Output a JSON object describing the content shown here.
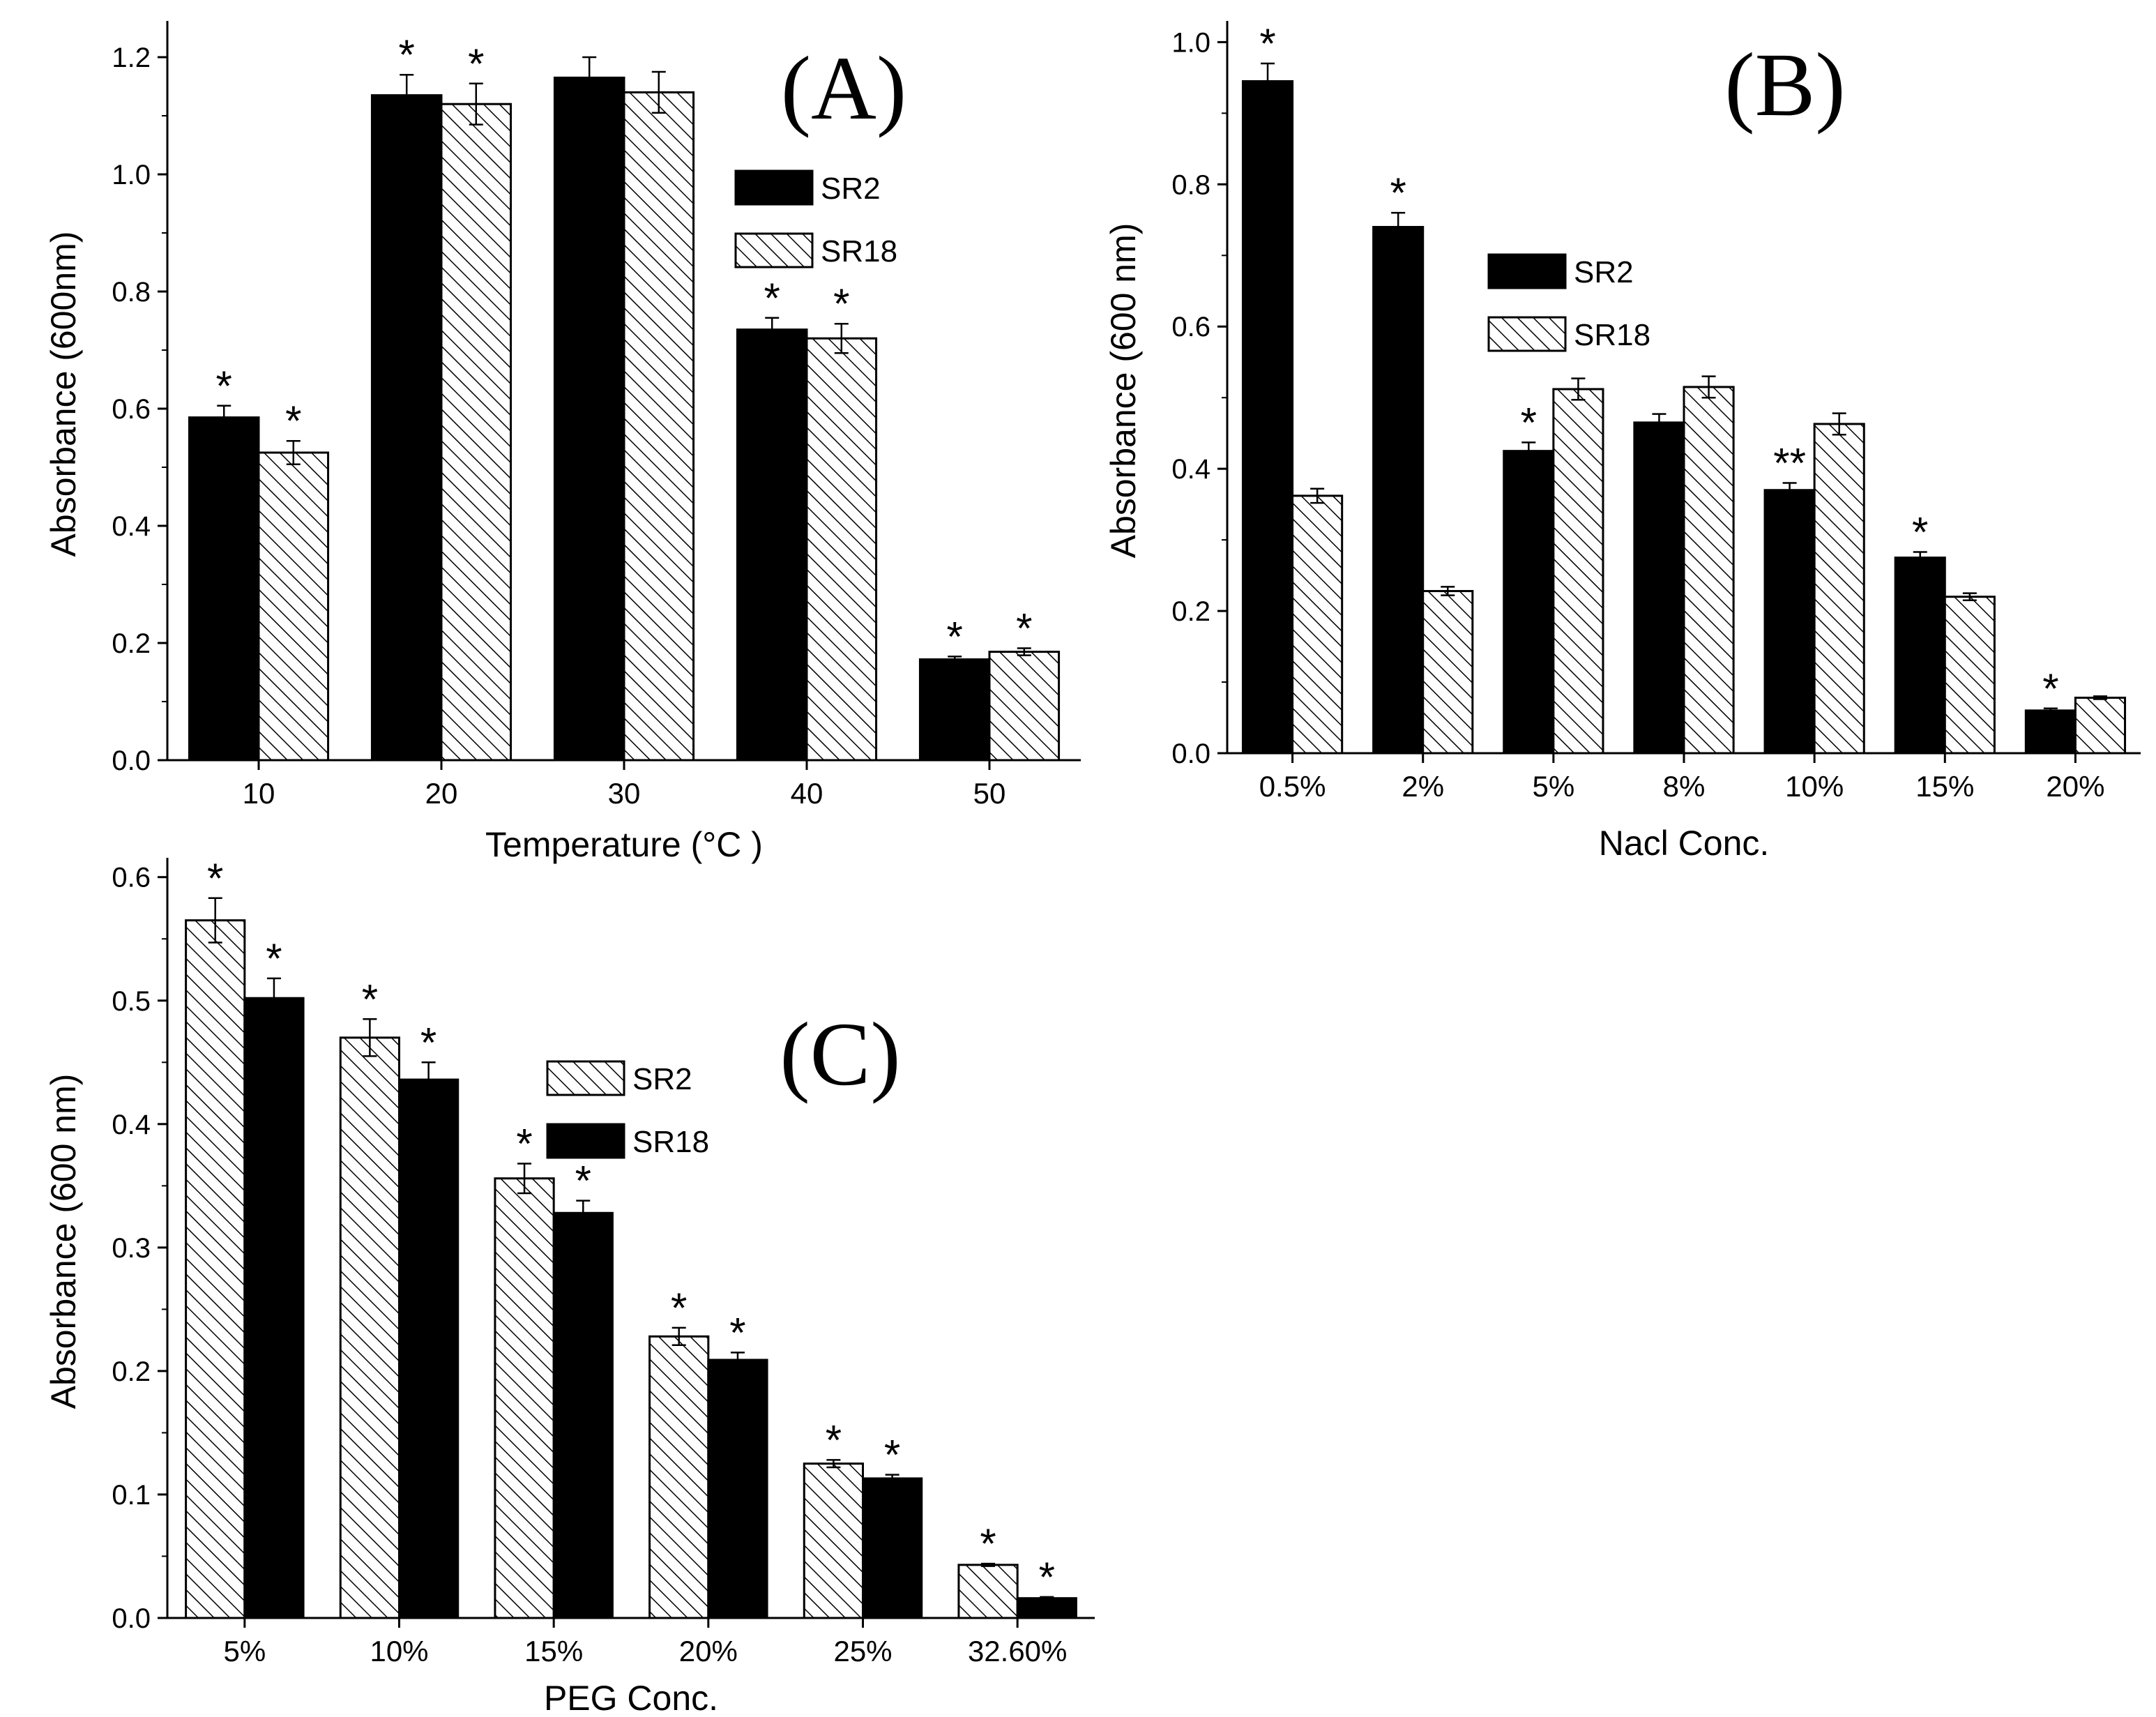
{
  "figure": {
    "colors": {
      "solid": "#000000",
      "hatch": "#000000",
      "background": "#ffffff"
    }
  },
  "chart_data": [
    {
      "panel": "(A)",
      "type": "bar",
      "xlabel": "Temperature (°C )",
      "ylabel": "Absorbance (600nm)",
      "ylim": [
        0,
        1.25
      ],
      "yticks": [
        "0.0",
        "0.2",
        "0.4",
        "0.6",
        "0.8",
        "1.0",
        "1.2"
      ],
      "categories": [
        "10",
        "20",
        "30",
        "40",
        "50"
      ],
      "legend_position": "upper-right",
      "series": [
        {
          "name": "SR2",
          "fill": "solid",
          "values": [
            0.585,
            1.135,
            1.165,
            0.735,
            0.172
          ],
          "errors": [
            0.02,
            0.035,
            0.035,
            0.02,
            0.005
          ],
          "marks": [
            "*",
            "*",
            "",
            "*",
            "*"
          ]
        },
        {
          "name": "SR18",
          "fill": "hatch",
          "values": [
            0.525,
            1.12,
            1.14,
            0.72,
            0.185
          ],
          "errors": [
            0.02,
            0.035,
            0.035,
            0.025,
            0.006
          ],
          "marks": [
            "*",
            "*",
            "",
            "*",
            "*"
          ]
        }
      ]
    },
    {
      "panel": "(B)",
      "type": "bar",
      "xlabel": "Nacl Conc.",
      "ylabel": "Absorbance (600 nm)",
      "ylim": [
        0,
        1.02
      ],
      "yticks": [
        "0.0",
        "0.2",
        "0.4",
        "0.6",
        "0.8",
        "1.0"
      ],
      "categories": [
        "0.5%",
        "2%",
        "5%",
        "8%",
        "10%",
        "15%",
        "20%"
      ],
      "legend_position": "upper-right",
      "series": [
        {
          "name": "SR2",
          "fill": "solid",
          "values": [
            0.945,
            0.74,
            0.425,
            0.465,
            0.37,
            0.275,
            0.06
          ],
          "errors": [
            0.025,
            0.02,
            0.012,
            0.012,
            0.01,
            0.008,
            0.003
          ],
          "marks": [
            "*",
            "*",
            "*",
            "",
            "**",
            "*",
            "*"
          ]
        },
        {
          "name": "SR18",
          "fill": "hatch",
          "values": [
            0.362,
            0.228,
            0.512,
            0.515,
            0.463,
            0.22,
            0.078
          ],
          "errors": [
            0.01,
            0.006,
            0.015,
            0.015,
            0.015,
            0.005,
            0.002
          ],
          "marks": [
            "",
            "",
            "",
            "",
            "",
            "",
            ""
          ]
        }
      ]
    },
    {
      "panel": "(C)",
      "type": "bar",
      "xlabel": "PEG Conc.",
      "ylabel": "Absorbance (600 nm)",
      "ylim": [
        0,
        0.61
      ],
      "yticks": [
        "0.0",
        "0.1",
        "0.2",
        "0.3",
        "0.4",
        "0.5",
        "0.6"
      ],
      "categories": [
        "5%",
        "10%",
        "15%",
        "20%",
        "25%",
        "32.60%"
      ],
      "legend_position": "upper-right",
      "series": [
        {
          "name": "SR2",
          "fill": "hatch",
          "values": [
            0.565,
            0.47,
            0.356,
            0.228,
            0.125,
            0.043
          ],
          "errors": [
            0.018,
            0.015,
            0.012,
            0.007,
            0.003,
            0.001
          ],
          "marks": [
            "*",
            "*",
            "*",
            "*",
            "*",
            "*"
          ]
        },
        {
          "name": "SR18",
          "fill": "solid",
          "values": [
            0.502,
            0.436,
            0.328,
            0.209,
            0.113,
            0.016
          ],
          "errors": [
            0.016,
            0.014,
            0.01,
            0.006,
            0.003,
            0.001
          ],
          "marks": [
            "*",
            "*",
            "*",
            "*",
            "*",
            "*"
          ]
        }
      ]
    }
  ]
}
